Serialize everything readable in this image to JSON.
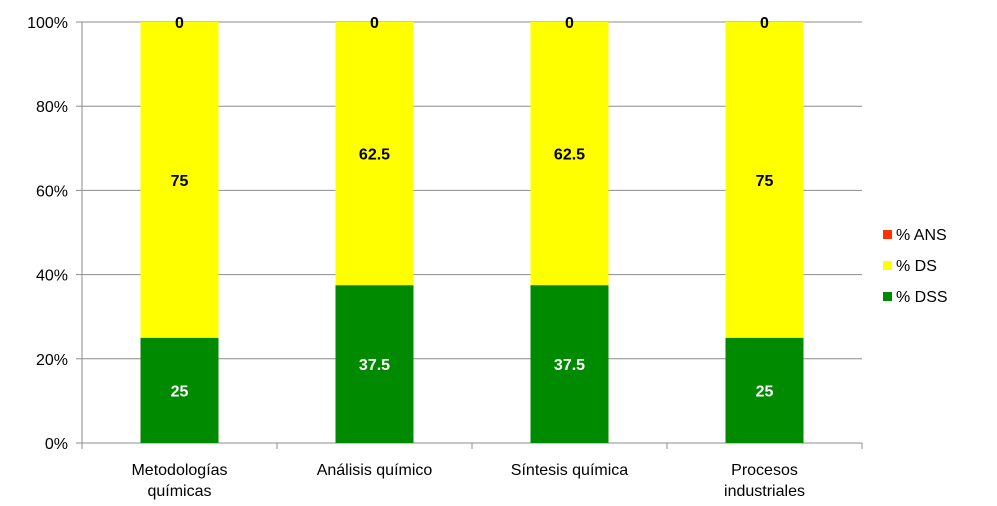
{
  "chart_data": {
    "type": "bar",
    "stacked": true,
    "percent": true,
    "categories": [
      [
        "Metodologías",
        "químicas"
      ],
      [
        "Análisis químico"
      ],
      [
        "Síntesis química"
      ],
      [
        "Procesos",
        "industriales"
      ]
    ],
    "series": [
      {
        "name": "% DSS",
        "values": [
          25,
          37.5,
          37.5,
          25
        ],
        "color": "#008a00",
        "label_color": "#ffffff"
      },
      {
        "name": "% DS",
        "values": [
          75,
          62.5,
          62.5,
          75
        ],
        "color": "#ffff00",
        "label_color": "#000000"
      },
      {
        "name": "% ANS",
        "values": [
          0,
          0,
          0,
          0
        ],
        "color": "#ff3300",
        "label_color": "#000000"
      }
    ],
    "ylim": [
      0,
      100
    ],
    "yticks": [
      "0%",
      "20%",
      "40%",
      "60%",
      "80%",
      "100%"
    ],
    "grid": true,
    "legend": [
      "% ANS",
      "% DS",
      "% DSS"
    ],
    "legend_position": "right"
  }
}
